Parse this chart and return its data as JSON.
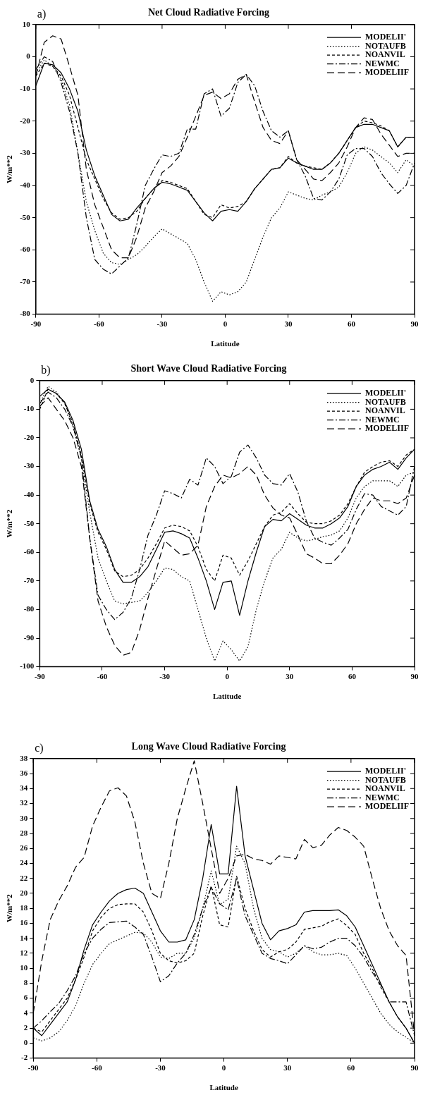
{
  "chart_data": [
    {
      "type": "line",
      "title": "Net Cloud Radiative Forcing",
      "xlabel": "Latitude",
      "ylabel": "W/m**2",
      "annotations": [
        "a)"
      ],
      "x": [
        -90,
        -86,
        -82,
        -78,
        -74,
        -70,
        -66,
        -62,
        -58,
        -54,
        -50,
        -46,
        -42,
        -38,
        -34,
        -30,
        -26,
        -22,
        -18,
        -14,
        -10,
        -6,
        -2,
        2,
        6,
        10,
        14,
        18,
        22,
        26,
        30,
        34,
        38,
        42,
        46,
        50,
        54,
        58,
        62,
        66,
        70,
        74,
        78,
        82,
        86,
        90
      ],
      "series": [
        {
          "name": "MODELII'",
          "color": "#000000",
          "line_style": "solid",
          "values": [
            -9,
            -2,
            -2.5,
            -5,
            -10,
            -17,
            -29,
            -37,
            -43,
            -49,
            -51,
            -50.5,
            -47,
            -44,
            -41,
            -39,
            -39.5,
            -40.5,
            -41.5,
            -45,
            -48.5,
            -51,
            -48,
            -47.5,
            -48,
            -45,
            -41,
            -38,
            -35,
            -34.5,
            -31.5,
            -33,
            -34,
            -35,
            -35,
            -33,
            -30,
            -26,
            -22,
            -21,
            -21,
            -22,
            -23,
            -28,
            -25,
            -25
          ]
        },
        {
          "name": "NOTAUFB",
          "color": "#000000",
          "line_style": "dotted",
          "values": [
            -5,
            -1,
            -3,
            -7,
            -15,
            -30,
            -45,
            -54,
            -61,
            -64,
            -64.5,
            -63,
            -61.5,
            -59,
            -56,
            -53.5,
            -55,
            -56.5,
            -58,
            -63,
            -70,
            -76,
            -73,
            -74,
            -73,
            -70,
            -63,
            -56,
            -50,
            -47,
            -42,
            -43,
            -44,
            -44.5,
            -43,
            -42,
            -40.5,
            -36,
            -30,
            -28,
            -29,
            -31,
            -33,
            -36,
            -32,
            -34
          ]
        },
        {
          "name": "NOANVIL",
          "color": "#000000",
          "line_style": "dashed",
          "values": [
            -6,
            -2,
            -3,
            -6,
            -12,
            -22,
            -32,
            -38,
            -44,
            -48.5,
            -50.5,
            -50,
            -48,
            -44,
            -41,
            -38.5,
            -39,
            -40,
            -41,
            -45,
            -49,
            -50,
            -46,
            -47,
            -46.5,
            -45,
            -41,
            -38,
            -35,
            -34.5,
            -31,
            -33,
            -34,
            -34.5,
            -35,
            -33,
            -30,
            -26,
            -22,
            -20,
            -20.5,
            -21.5,
            -23,
            -28,
            -25,
            -25
          ]
        },
        {
          "name": "NEWMC",
          "color": "#000000",
          "line_style": "dashdot",
          "values": [
            -4,
            0,
            -1.5,
            -8,
            -17,
            -30,
            -50,
            -63,
            -66,
            -67.5,
            -65,
            -62.5,
            -52,
            -40,
            -35,
            -30.5,
            -31,
            -30,
            -22.5,
            -22.5,
            -11.5,
            -10,
            -18.5,
            -16,
            -8,
            -5.5,
            -9,
            -17,
            -23,
            -25,
            -23,
            -32,
            -37,
            -44,
            -44.5,
            -42,
            -38,
            -30.5,
            -28.5,
            -28.5,
            -31,
            -36,
            -39.5,
            -42.5,
            -40,
            -33
          ]
        },
        {
          "name": "MODELIIF",
          "color": "#000000",
          "line_style": "longdash",
          "values": [
            -6,
            4.5,
            6.5,
            5.5,
            -3,
            -12,
            -35,
            -46,
            -53,
            -60,
            -62.5,
            -62.5,
            -56,
            -47,
            -42,
            -36,
            -34,
            -31,
            -25,
            -18.5,
            -12,
            -11,
            -13,
            -11.5,
            -7,
            -5.5,
            -14,
            -22,
            -26,
            -27,
            -23,
            -32,
            -35,
            -38,
            -38.5,
            -36,
            -33,
            -28,
            -22,
            -19,
            -19.5,
            -24,
            -27.5,
            -31,
            -30,
            -30
          ]
        }
      ],
      "xlim": [
        -90,
        90
      ],
      "xticks": [
        -90,
        -60,
        -30,
        0,
        30,
        60,
        90
      ],
      "ylim": [
        -80,
        10
      ],
      "yticks": [
        -80,
        -70,
        -60,
        -50,
        -40,
        -30,
        -20,
        -10,
        0,
        10
      ],
      "grid": false,
      "legend": "top right",
      "marker": "none"
    },
    {
      "type": "line",
      "title": "Short Wave Cloud Radiative Forcing",
      "xlabel": "Latitude",
      "ylabel": "W/m**2",
      "annotations": [
        "b)"
      ],
      "x": [
        -90,
        -86,
        -82,
        -78,
        -74,
        -70,
        -66,
        -62,
        -58,
        -54,
        -50,
        -46,
        -42,
        -38,
        -34,
        -30,
        -26,
        -22,
        -18,
        -14,
        -10,
        -6,
        -2,
        2,
        6,
        10,
        14,
        18,
        22,
        26,
        30,
        34,
        38,
        42,
        46,
        50,
        54,
        58,
        62,
        66,
        70,
        74,
        78,
        82,
        86,
        90
      ],
      "series": [
        {
          "name": "MODELII'",
          "color": "#000000",
          "line_style": "solid",
          "values": [
            -5.5,
            -3,
            -4.5,
            -7.5,
            -14,
            -24,
            -42,
            -52,
            -58,
            -66,
            -70.5,
            -70.5,
            -68.5,
            -65,
            -59,
            -53,
            -52.5,
            -53.5,
            -55,
            -62,
            -70,
            -80,
            -70.5,
            -70,
            -82,
            -70,
            -60,
            -51,
            -48.5,
            -49,
            -46.5,
            -48.5,
            -50.5,
            -51.5,
            -51.5,
            -50,
            -48,
            -44,
            -37,
            -33,
            -31,
            -30,
            -28.5,
            -31,
            -27,
            -24
          ]
        },
        {
          "name": "NOTAUFB",
          "color": "#000000",
          "line_style": "dotted",
          "values": [
            -8,
            -2,
            -4,
            -8,
            -16,
            -27,
            -46,
            -62,
            -70,
            -77,
            -78,
            -77.5,
            -77,
            -74,
            -70,
            -65.5,
            -66,
            -68.5,
            -70,
            -80,
            -90,
            -98,
            -91,
            -94,
            -98,
            -93,
            -80,
            -70,
            -62,
            -59,
            -53,
            -55,
            -56,
            -55.5,
            -54.5,
            -54,
            -52.5,
            -48,
            -41,
            -37,
            -35,
            -35,
            -35,
            -37,
            -33,
            -32
          ]
        },
        {
          "name": "NOANVIL",
          "color": "#000000",
          "line_style": "dashed",
          "values": [
            -10,
            -3,
            -4.5,
            -8,
            -15,
            -26,
            -43,
            -53,
            -59,
            -66.5,
            -68.5,
            -68,
            -66,
            -62,
            -57,
            -51.5,
            -50.5,
            -51,
            -52.5,
            -58,
            -66,
            -70,
            -61,
            -62,
            -68,
            -63,
            -57,
            -51,
            -47,
            -46,
            -43,
            -46.5,
            -49.5,
            -50,
            -50,
            -49,
            -47,
            -43,
            -37,
            -32,
            -30,
            -28.5,
            -28,
            -30,
            -26,
            -24
          ]
        },
        {
          "name": "NEWMC",
          "color": "#000000",
          "line_style": "dashdot",
          "values": [
            -8,
            -4,
            -6,
            -10,
            -16,
            -27,
            -55,
            -75,
            -80,
            -83.5,
            -81,
            -76,
            -66,
            -54,
            -47,
            -38.5,
            -39.5,
            -41,
            -34.5,
            -36.5,
            -27,
            -30,
            -36,
            -33.5,
            -25,
            -22.5,
            -27,
            -33,
            -36,
            -36.5,
            -32.5,
            -39,
            -49,
            -55,
            -56.5,
            -57.5,
            -55,
            -52,
            -45,
            -39.5,
            -40,
            -44,
            -45.5,
            -47,
            -44,
            -30
          ]
        },
        {
          "name": "MODELIIF",
          "color": "#000000",
          "line_style": "longdash",
          "values": [
            -9,
            -6,
            -10,
            -14,
            -20,
            -30,
            -55,
            -77,
            -86,
            -92.5,
            -96,
            -95,
            -87,
            -76,
            -66,
            -56,
            -58.5,
            -61,
            -60.5,
            -57.5,
            -44,
            -37,
            -33,
            -34,
            -32.5,
            -30,
            -33,
            -40,
            -44.5,
            -47,
            -48,
            -54,
            -60.5,
            -62,
            -64,
            -64,
            -61,
            -57,
            -50,
            -45,
            -41,
            -42,
            -42,
            -43,
            -41,
            -33
          ]
        }
      ],
      "xlim": [
        -90,
        90
      ],
      "xticks": [
        -90,
        -60,
        -30,
        0,
        30,
        60,
        90
      ],
      "ylim": [
        -100,
        0
      ],
      "yticks": [
        -100,
        -90,
        -80,
        -70,
        -60,
        -50,
        -40,
        -30,
        -20,
        -10,
        0
      ],
      "grid": false,
      "legend": "top right",
      "marker": "none"
    },
    {
      "type": "line",
      "title": "Long Wave Cloud Radiative Forcing",
      "xlabel": "Latitude",
      "ylabel": "W/m**2",
      "annotations": [
        "c)"
      ],
      "x": [
        -90,
        -86,
        -82,
        -78,
        -74,
        -70,
        -66,
        -62,
        -58,
        -54,
        -50,
        -46,
        -42,
        -38,
        -34,
        -30,
        -26,
        -22,
        -18,
        -14,
        -10,
        -6,
        -2,
        2,
        6,
        10,
        14,
        18,
        22,
        26,
        30,
        34,
        38,
        42,
        46,
        50,
        54,
        58,
        62,
        66,
        70,
        74,
        78,
        82,
        86,
        90
      ],
      "series": [
        {
          "name": "MODELII'",
          "color": "#000000",
          "line_style": "solid",
          "values": [
            2,
            1,
            2.5,
            4,
            5.5,
            8.5,
            12.5,
            15.8,
            17.5,
            19,
            20,
            20.5,
            20.7,
            20,
            17.5,
            15,
            13.5,
            13.5,
            13.8,
            16.5,
            22,
            29.2,
            22.6,
            22.6,
            34.3,
            25,
            20.5,
            16,
            13.8,
            15,
            15.3,
            15.8,
            17.5,
            17.7,
            17.7,
            17.7,
            17.8,
            17,
            15.5,
            13,
            10.5,
            8,
            5.5,
            3.5,
            2,
            0
          ]
        },
        {
          "name": "NOTAUFB",
          "color": "#000000",
          "line_style": "dotted",
          "values": [
            0.7,
            0.3,
            0.7,
            1.5,
            3,
            5,
            8,
            10.5,
            12,
            13.3,
            13.8,
            14.3,
            14.8,
            14.7,
            13.5,
            11.5,
            11.3,
            12,
            12,
            14,
            18,
            23,
            18.5,
            19.2,
            26.3,
            24,
            18,
            14,
            12.5,
            12.2,
            11.5,
            12,
            13,
            12.2,
            11.8,
            11.8,
            12,
            11.7,
            10,
            8,
            6,
            4,
            2.5,
            1.5,
            0.8,
            0
          ]
        },
        {
          "name": "NOANVIL",
          "color": "#000000",
          "line_style": "dashed",
          "values": [
            2,
            1.5,
            3,
            4.5,
            6,
            8.5,
            11.5,
            15,
            16.8,
            18,
            18.5,
            18.6,
            18.6,
            17.5,
            15,
            12,
            11,
            10.7,
            11,
            12,
            17,
            21,
            15.8,
            15.5,
            22.3,
            18,
            15,
            12.5,
            11.5,
            12.2,
            12.5,
            13.5,
            15.2,
            15.4,
            15.6,
            16.2,
            16.6,
            15.7,
            14.5,
            12,
            10,
            7.5,
            5.5,
            3.5,
            2,
            0
          ]
        },
        {
          "name": "NEWMC",
          "color": "#000000",
          "line_style": "dashdot",
          "values": [
            2,
            3,
            4.2,
            5.3,
            7,
            9,
            12,
            14,
            15.2,
            16.1,
            16.2,
            16.3,
            15.5,
            14.5,
            11.5,
            8.2,
            9,
            10.7,
            12,
            14.5,
            18,
            20.8,
            18.6,
            17.8,
            22,
            17,
            14.5,
            12,
            11.3,
            11,
            10.6,
            11.8,
            13,
            12.6,
            12.8,
            13.5,
            14,
            14,
            13,
            11.5,
            9.5,
            7.8,
            5.5,
            5.5,
            5.5,
            1
          ]
        },
        {
          "name": "MODELIIF",
          "color": "#000000",
          "line_style": "longdash",
          "values": [
            4,
            11,
            16.5,
            19,
            21,
            23.5,
            24.8,
            29,
            31.5,
            33.7,
            34.1,
            33,
            29.5,
            24,
            20,
            19.3,
            24,
            30,
            34,
            37.7,
            32,
            26,
            20,
            22,
            25,
            25.2,
            24.6,
            24.4,
            23.9,
            25,
            24.8,
            24.6,
            27.2,
            26.1,
            26.4,
            27.8,
            28.8,
            28.4,
            27.5,
            26.3,
            22,
            18,
            15,
            13,
            11.7,
            1
          ]
        }
      ],
      "xlim": [
        -90,
        90
      ],
      "xticks": [
        -90,
        -60,
        -30,
        0,
        30,
        60,
        90
      ],
      "ylim": [
        -2,
        38
      ],
      "yticks": [
        -2,
        0,
        2,
        4,
        6,
        8,
        10,
        12,
        14,
        16,
        18,
        20,
        22,
        24,
        26,
        28,
        30,
        32,
        34,
        36,
        38
      ],
      "grid": false,
      "legend": "top right",
      "marker": "none"
    }
  ]
}
